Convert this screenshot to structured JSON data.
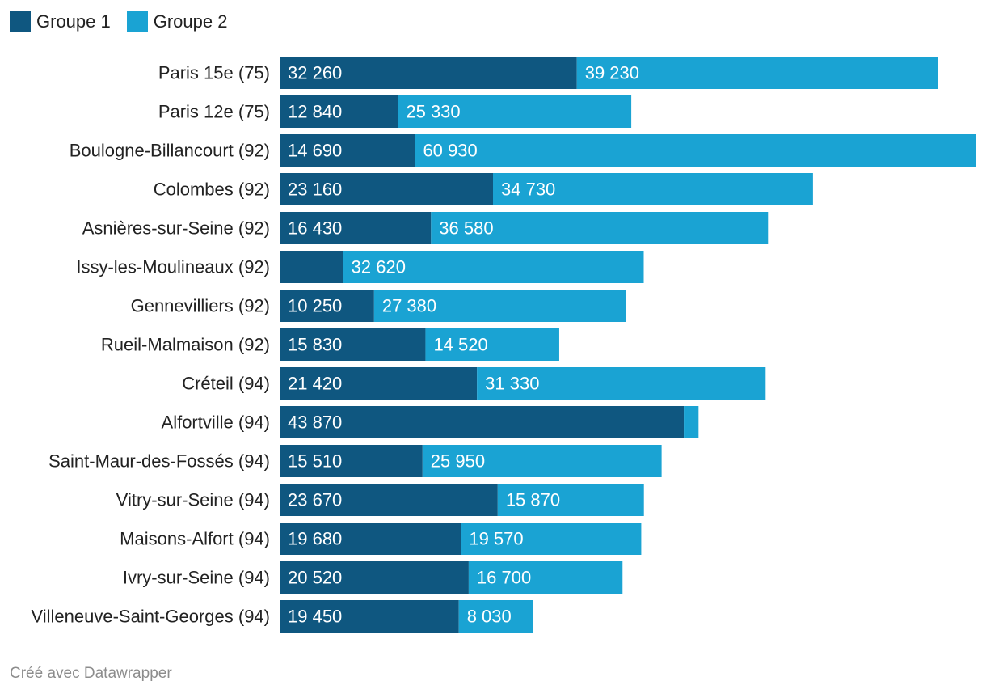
{
  "legend": {
    "items": [
      {
        "label": "Groupe 1",
        "color": "#0f5780"
      },
      {
        "label": "Groupe 2",
        "color": "#1aa3d3"
      }
    ]
  },
  "footer": {
    "credit": "Créé avec Datawrapper"
  },
  "chart_data": {
    "type": "bar",
    "orientation": "horizontal",
    "stacked": true,
    "title": "",
    "xlabel": "",
    "ylabel": "",
    "xlim": [
      0,
      75620
    ],
    "grid": false,
    "legend_position": "top-left",
    "categories": [
      "Paris 15e (75)",
      "Paris 12e (75)",
      "Boulogne-Billancourt (92)",
      "Colombes (92)",
      "Asnières-sur-Seine (92)",
      "Issy-les-Moulineaux (92)",
      "Gennevilliers (92)",
      "Rueil-Malmaison (92)",
      "Créteil (94)",
      "Alfortville (94)",
      "Saint-Maur-des-Fossés (94)",
      "Vitry-sur-Seine (94)",
      "Maisons-Alfort (94)",
      "Ivry-sur-Seine (94)",
      "Villeneuve-Saint-Georges (94)"
    ],
    "series": [
      {
        "name": "Groupe 1",
        "color": "#0f5780",
        "values": [
          32260,
          12840,
          14690,
          23160,
          16430,
          6900,
          10250,
          15830,
          21420,
          43870,
          15510,
          23670,
          19680,
          20520,
          19450
        ],
        "labels": [
          "32 260",
          "12 840",
          "14 690",
          "23 160",
          "16 430",
          "",
          "10 250",
          "15 830",
          "21 420",
          "43 870",
          "15 510",
          "23 670",
          "19 680",
          "20 520",
          "19 450"
        ]
      },
      {
        "name": "Groupe 2",
        "color": "#1aa3d3",
        "values": [
          39230,
          25330,
          60930,
          34730,
          36580,
          32620,
          27380,
          14520,
          31330,
          1600,
          25950,
          15870,
          19570,
          16700,
          8030
        ],
        "labels": [
          "39 230",
          "25 330",
          "60 930",
          "34 730",
          "36 580",
          "32 620",
          "27 380",
          "14 520",
          "31 330",
          "",
          "25 950",
          "15 870",
          "19 570",
          "16 700",
          "8 030"
        ]
      }
    ]
  }
}
